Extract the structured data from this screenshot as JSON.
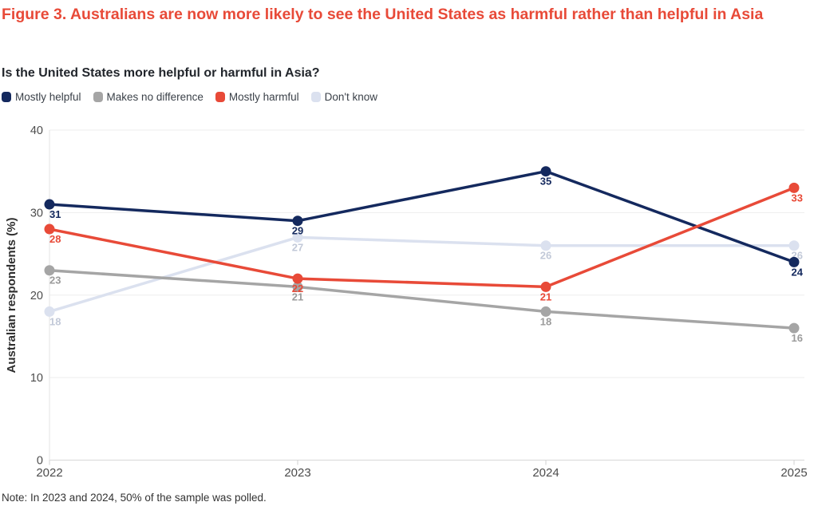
{
  "title": "Figure 3. Australians are now more likely to see the United States as harmful rather than helpful in Asia",
  "subtitle": "Is the United States more helpful or harmful in Asia?",
  "note": "Note: In 2023 and 2024, 50% of the sample was polled.",
  "colors": {
    "title_red": "#e84a38",
    "subtitle_dark": "#22262c",
    "axis_line": "#d8d8d8",
    "gridline": "#ededed",
    "tick_text": "#4c4c4c"
  },
  "chart_data": {
    "type": "line",
    "x": [
      "2022",
      "2023",
      "2024",
      "2025"
    ],
    "series": [
      {
        "name": "Mostly helpful",
        "color": "#14295e",
        "label_color": "#14295e",
        "values": [
          31,
          29,
          35,
          24
        ]
      },
      {
        "name": "Makes no difference",
        "color": "#a5a5a5",
        "label_color": "#9b9b9b",
        "values": [
          23,
          21,
          18,
          16
        ]
      },
      {
        "name": "Mostly harmful",
        "color": "#e84a38",
        "label_color": "#e84a38",
        "values": [
          28,
          22,
          21,
          33
        ]
      },
      {
        "name": "Don't know",
        "color": "#dbe1ef",
        "label_color": "#c2c9d8",
        "values": [
          18,
          27,
          26,
          26
        ]
      }
    ],
    "draw_order_note": "Don't know behind, then Makes no difference, then Mostly helpful, Mostly harmful on top",
    "ylabel": "Australian respondents (%)",
    "ylim": [
      0,
      40
    ],
    "yticks": [
      0,
      10,
      20,
      30,
      40
    ],
    "grid": "horizontal",
    "legend_position": "top-left"
  }
}
